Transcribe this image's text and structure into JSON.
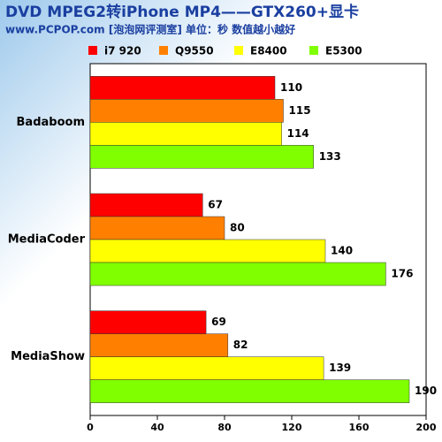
{
  "chart_data": {
    "type": "bar",
    "orientation": "horizontal",
    "title": "DVD MPEG2转iPhone MP4——GTX260+显卡",
    "subtitle": "www.PCPOP.com [泡泡网评测室] 单位：秒   数值越小越好",
    "categories": [
      "Badaboom",
      "MediaCoder",
      "MediaShow"
    ],
    "series": [
      {
        "name": "i7 920",
        "color": "#ff0000",
        "values": [
          110,
          67,
          69
        ]
      },
      {
        "name": "Q9550",
        "color": "#ff8000",
        "values": [
          115,
          80,
          82
        ]
      },
      {
        "name": "E8400",
        "color": "#ffff00",
        "values": [
          114,
          140,
          139
        ]
      },
      {
        "name": "E5300",
        "color": "#80ff00",
        "values": [
          133,
          176,
          190
        ]
      }
    ],
    "xlim": [
      0,
      200
    ],
    "xticks": [
      0,
      40,
      80,
      120,
      160,
      200
    ]
  }
}
